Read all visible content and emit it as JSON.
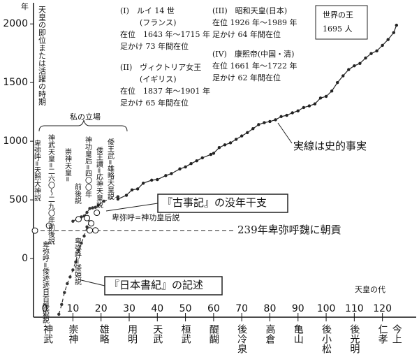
{
  "chart_data": {
    "type": "line",
    "y_unit": "年",
    "ylabel": "天皇の即位または活躍の時期",
    "xlabel": "天皇の代",
    "xlim": [
      -4,
      132
    ],
    "ylim": [
      -500,
      2180
    ],
    "xticks": [
      0,
      10,
      20,
      30,
      40,
      50,
      60,
      70,
      80,
      90,
      100,
      110,
      120
    ],
    "yticks": [
      0,
      500,
      1000,
      1500,
      2000
    ],
    "emperor_labels": [
      {
        "value": 1,
        "label": "神武"
      },
      {
        "value": 10,
        "label": "崇神"
      },
      {
        "value": 21,
        "label": "雄略"
      },
      {
        "value": 31,
        "label": "用明"
      },
      {
        "value": 40,
        "label": "天武"
      },
      {
        "value": 50,
        "label": "桓武"
      },
      {
        "value": 60,
        "label": "醍醐"
      },
      {
        "value": 70,
        "label": "後冷泉"
      },
      {
        "value": 80,
        "label": "高倉"
      },
      {
        "value": 90,
        "label": "亀山"
      },
      {
        "value": 100,
        "label": "後小松"
      },
      {
        "value": 110,
        "label": "後光明"
      },
      {
        "value": 120,
        "label": "仁孝"
      },
      {
        "value": 125,
        "label": "今上"
      }
    ],
    "series": [
      {
        "color": "#222222",
        "dashed": false,
        "x": [
          26,
          29,
          31,
          33,
          35,
          38,
          40,
          43,
          45,
          48,
          50,
          52,
          54,
          56,
          59,
          60,
          62,
          64,
          66,
          68,
          70,
          72,
          74,
          76,
          78,
          80,
          82,
          84,
          86,
          88,
          90,
          92,
          94,
          96,
          98,
          100,
          102,
          104,
          106,
          108,
          110,
          112,
          114,
          116,
          118,
          120,
          122,
          124,
          125
        ],
        "values": [
          507,
          539,
          585,
          593,
          642,
          668,
          673,
          707,
          724,
          764,
          781,
          809,
          833,
          858,
          887,
          897,
          946,
          969,
          986,
          1016,
          1045,
          1073,
          1107,
          1142,
          1158,
          1168,
          1183,
          1210,
          1221,
          1242,
          1259,
          1287,
          1301,
          1318,
          1368,
          1382,
          1428,
          1500,
          1557,
          1611,
          1643,
          1663,
          1709,
          1747,
          1770,
          1817,
          1867,
          1926,
          1989
        ]
      },
      {
        "color": "#333333",
        "dashed": true,
        "x": [
          10,
          13,
          14,
          15,
          16,
          17,
          18,
          19,
          21,
          26
        ],
        "values": [
          318,
          355,
          362,
          394,
          427,
          432,
          437,
          454,
          489,
          527
        ]
      },
      {
        "color": "#333333",
        "dashed": true,
        "x": [
          5,
          6,
          7,
          8,
          9,
          10,
          11,
          12,
          13,
          14,
          15,
          16
        ],
        "values": [
          -475,
          -392,
          -290,
          -214,
          -157,
          -97,
          -29,
          71,
          131,
          192,
          270,
          313
        ]
      }
    ],
    "hypothesis_points": {
      "x": [
        -3.5,
        1.5,
        12,
        15,
        16.5,
        16,
        18,
        18.5
      ],
      "values": [
        238,
        280,
        335,
        345,
        300,
        240,
        240,
        390
      ]
    },
    "hypothesis_labels": [
      "卑弥呼=天照大神説",
      "神武天皇=二六〇〜二九〇年前後説",
      "崇神天皇=",
      "前後説",
      "神功皇后=四〇〇年",
      "倭王讃=応神天皇説",
      "倭王武=雄略天皇説",
      "卑弥呼=倭迹迹日百襲姫説",
      "卑弥呼=倭姫説",
      "卑弥呼=神功皇后説"
    ],
    "ref_line": {
      "value": 239,
      "label": "239年卑弥呼魏に朝貢"
    },
    "notes": [
      "実線は史的事実",
      "『古事記』の没年干支",
      "『日本書紀』の記述"
    ],
    "stand_label": "私の立場",
    "reigns": [
      {
        "title": "(I)　ルイ 14 世",
        "country": "(フランス)",
        "reign": "在位　1643 年〜1715 年",
        "span": "足かけ 73 年間在位"
      },
      {
        "title": "(II)　ヴィクトリア女王",
        "country": "(イギリス)",
        "reign": "在位　1837 年〜1901 年",
        "span": "足かけ 65 年間在位"
      },
      {
        "title": "(III)　昭和天皇(日本)",
        "reign": "在位 1926 年〜1989 年",
        "span": "足かけ 64 年間在位"
      },
      {
        "title": "(IV)　康熙帝(中国・清)",
        "reign": "在位 1661 年〜1722 年",
        "span": "足かけ 62 年間在位"
      }
    ],
    "world_box": [
      "世界の王",
      "1695 人"
    ]
  }
}
